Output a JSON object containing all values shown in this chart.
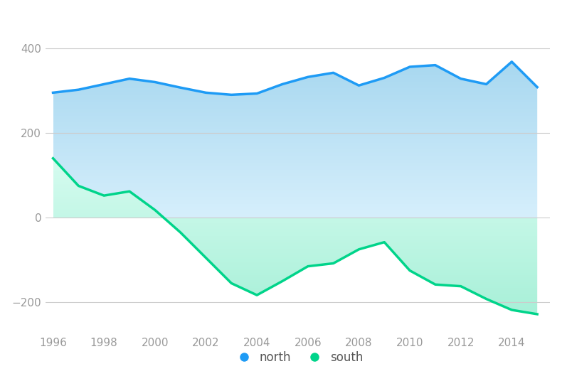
{
  "years": [
    1996,
    1997,
    1998,
    1999,
    2000,
    2001,
    2002,
    2003,
    2004,
    2005,
    2006,
    2007,
    2008,
    2009,
    2010,
    2011,
    2012,
    2013,
    2014,
    2015
  ],
  "north": [
    295,
    302,
    315,
    328,
    320,
    307,
    295,
    290,
    293,
    315,
    332,
    342,
    312,
    330,
    356,
    360,
    328,
    315,
    368,
    308
  ],
  "south": [
    140,
    75,
    52,
    62,
    18,
    -35,
    -95,
    -155,
    -183,
    -150,
    -115,
    -108,
    -75,
    -58,
    -125,
    -158,
    -162,
    -192,
    -218,
    -228
  ],
  "north_line_color": "#1E9BF5",
  "north_fill_top": "#A8D8F0",
  "north_fill_bottom": "#D6EFFC",
  "south_line_color": "#00D48A",
  "south_fill_top": "#A8F0D8",
  "south_fill_bottom": "#D6FCF0",
  "background_color": "#ffffff",
  "ylim": [
    -270,
    450
  ],
  "yticks": [
    -200,
    0,
    200,
    400
  ],
  "xticks": [
    1996,
    1998,
    2000,
    2002,
    2004,
    2006,
    2008,
    2010,
    2012,
    2014
  ],
  "legend_north": "north",
  "legend_south": "south",
  "grid_color": "#cccccc",
  "tick_color": "#999999",
  "tick_fontsize": 11,
  "legend_fontsize": 12,
  "legend_marker_size": 10,
  "figwidth": 7.97,
  "figheight": 5.43,
  "dpi": 100
}
